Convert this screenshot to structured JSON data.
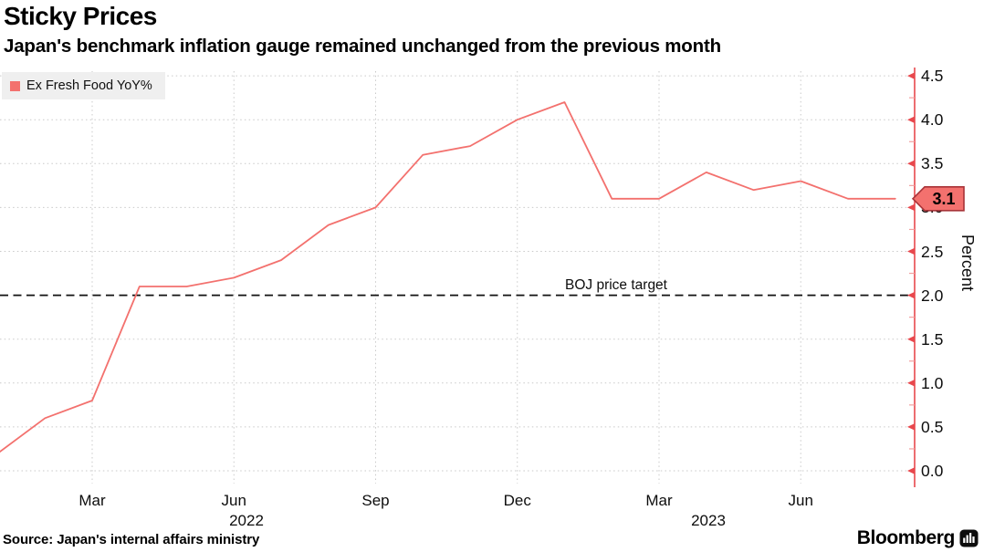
{
  "header": {
    "title": "Sticky Prices",
    "subtitle": "Japan's benchmark inflation gauge remained unchanged from the previous month"
  },
  "legend": {
    "label": "Ex Fresh Food YoY%"
  },
  "chart_data": {
    "type": "line",
    "x": [
      "Jan 2022",
      "Feb 2022",
      "Mar 2022",
      "Apr 2022",
      "May 2022",
      "Jun 2022",
      "Jul 2022",
      "Aug 2022",
      "Sep 2022",
      "Oct 2022",
      "Nov 2022",
      "Dec 2022",
      "Jan 2023",
      "Feb 2023",
      "Mar 2023",
      "Apr 2023",
      "May 2023",
      "Jun 2023",
      "Jul 2023",
      "Aug 2023"
    ],
    "series": [
      {
        "name": "Ex Fresh Food YoY%",
        "color": "#f3716e",
        "values": [
          0.2,
          0.6,
          0.8,
          2.1,
          2.1,
          2.2,
          2.4,
          2.8,
          3.0,
          3.6,
          3.7,
          4.0,
          4.2,
          3.1,
          3.1,
          3.4,
          3.2,
          3.3,
          3.1,
          3.1
        ]
      }
    ],
    "x_ticks": [
      {
        "label": "Mar",
        "month_index": 2
      },
      {
        "label": "Jun",
        "month_index": 5
      },
      {
        "label": "Sep",
        "month_index": 8
      },
      {
        "label": "Dec",
        "month_index": 11
      },
      {
        "label": "Mar",
        "month_index": 14
      },
      {
        "label": "Jun",
        "month_index": 17
      }
    ],
    "year_labels": [
      {
        "label": "2022"
      },
      {
        "label": "2023"
      }
    ],
    "y_ticks": [
      {
        "value": 0.0,
        "label": "0.0"
      },
      {
        "value": 0.5,
        "label": "0.5"
      },
      {
        "value": 1.0,
        "label": "1.0"
      },
      {
        "value": 1.5,
        "label": "1.5"
      },
      {
        "value": 2.0,
        "label": "2.0"
      },
      {
        "value": 2.5,
        "label": "2.5"
      },
      {
        "value": 3.0,
        "label": "3.0"
      },
      {
        "value": 3.5,
        "label": "3.5"
      },
      {
        "value": 4.0,
        "label": "4.0"
      },
      {
        "value": 4.5,
        "label": "4.5"
      }
    ],
    "y_minor_step": 0.25,
    "ylim": [
      0,
      4.5
    ],
    "ylabel": "Percent",
    "grid": true,
    "legend_position": "top-left",
    "reference_line": {
      "value": 2.0,
      "label": "BOJ price target"
    },
    "last_value_label": "3.1"
  },
  "footer": {
    "source": "Source: Japan's internal affairs ministry",
    "brand": "Bloomberg",
    "brand_icon": "bar-chart-icon"
  },
  "colors": {
    "line": "#f3716e",
    "axis": "#e8484d",
    "minor_tick": "#f2a0a0",
    "tag_fill": "#f3716e",
    "tag_border": "#a83338",
    "grid": "#c9c9c9",
    "reference": "#111111",
    "legend_bg": "#efefef"
  }
}
